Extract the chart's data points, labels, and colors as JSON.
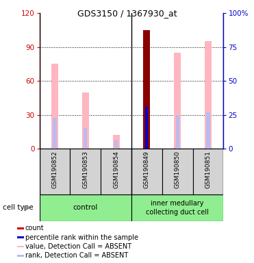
{
  "title": "GDS3150 / 1367930_at",
  "samples": [
    "GSM190852",
    "GSM190853",
    "GSM190854",
    "GSM190849",
    "GSM190850",
    "GSM190851"
  ],
  "value_bars": [
    75,
    50,
    12,
    0,
    85,
    95
  ],
  "rank_bars": [
    27,
    18,
    7,
    0,
    30,
    32
  ],
  "count_bar": [
    0,
    0,
    0,
    105,
    0,
    0
  ],
  "percentile_bar": [
    0,
    0,
    0,
    37,
    0,
    0
  ],
  "count_color": "#8B0000",
  "percentile_color": "#0000CC",
  "value_color": "#FFB6C1",
  "rank_color": "#BBBBEE",
  "ylim_left": [
    0,
    120
  ],
  "ylim_right": [
    0,
    100
  ],
  "yticks_left": [
    0,
    30,
    60,
    90,
    120
  ],
  "yticks_right": [
    0,
    25,
    50,
    75,
    100
  ],
  "ytick_labels_right": [
    "0",
    "25",
    "50",
    "75",
    "100%"
  ],
  "left_axis_color": "#CC0000",
  "right_axis_color": "#0000CC",
  "legend_items": [
    {
      "color": "#CC0000",
      "label": "count"
    },
    {
      "color": "#0000CC",
      "label": "percentile rank within the sample"
    },
    {
      "color": "#FFB6C1",
      "label": "value, Detection Call = ABSENT"
    },
    {
      "color": "#BBBBEE",
      "label": "rank, Detection Call = ABSENT"
    }
  ]
}
